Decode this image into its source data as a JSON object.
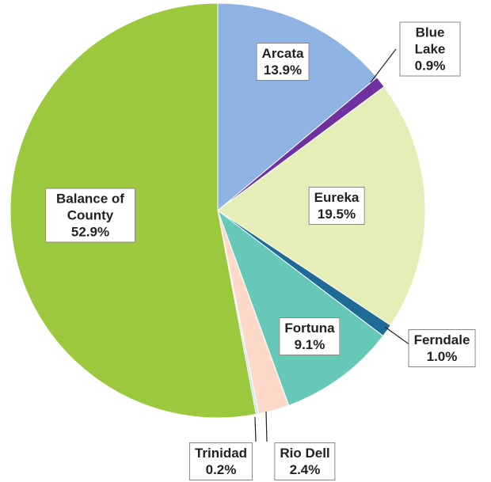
{
  "chart_data": {
    "type": "pie",
    "categories": [
      "Arcata",
      "Blue Lake",
      "Eureka",
      "Ferndale",
      "Fortuna",
      "Rio Dell",
      "Trinidad",
      "Balance of County"
    ],
    "values": [
      13.9,
      0.9,
      19.5,
      1.0,
      9.1,
      2.4,
      0.2,
      52.9
    ],
    "value_labels": [
      "13.9%",
      "0.9%",
      "19.5%",
      "1.0%",
      "9.1%",
      "2.4%",
      "0.2%",
      "52.9%"
    ],
    "colors": [
      "#8db4e2",
      "#7030a0",
      "#e6eeb8",
      "#1f6a96",
      "#66c9b8",
      "#fcd9c8",
      "#c9e8f0",
      "#9bc83c"
    ]
  }
}
